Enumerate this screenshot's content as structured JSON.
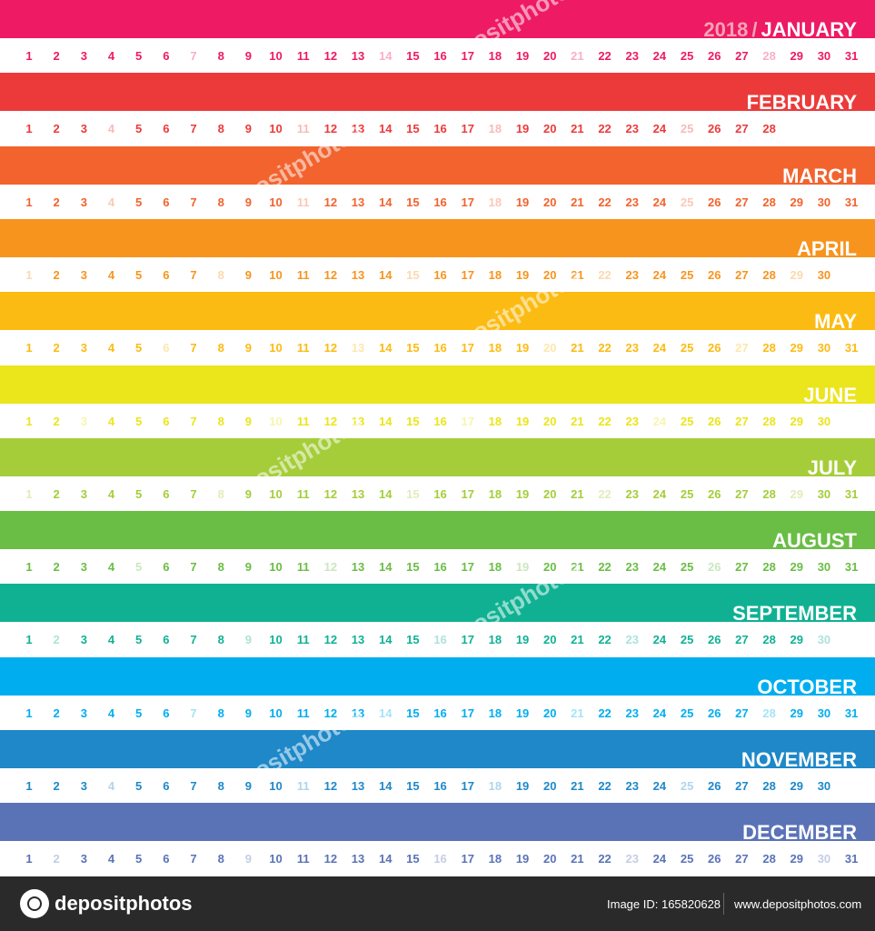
{
  "year": "2018",
  "separator": "/",
  "months": [
    {
      "name": "JANUARY",
      "color": "#ee1a63",
      "days": 31,
      "weekend": [
        7,
        14,
        21,
        28
      ]
    },
    {
      "name": "FEBRUARY",
      "color": "#ec3a3a",
      "days": 28,
      "weekend": [
        4,
        11,
        18,
        25
      ]
    },
    {
      "name": "MARCH",
      "color": "#f2632e",
      "days": 31,
      "weekend": [
        4,
        11,
        18,
        25
      ]
    },
    {
      "name": "APRIL",
      "color": "#f7941d",
      "days": 30,
      "weekend": [
        1,
        8,
        15,
        22,
        29
      ]
    },
    {
      "name": "MAY",
      "color": "#fbbb12",
      "days": 31,
      "weekend": [
        6,
        13,
        20,
        27
      ]
    },
    {
      "name": "JUNE",
      "color": "#ebe51b",
      "days": 30,
      "weekend": [
        3,
        10,
        17,
        24
      ]
    },
    {
      "name": "JULY",
      "color": "#a5cd3a",
      "days": 31,
      "weekend": [
        1,
        8,
        15,
        22,
        29
      ]
    },
    {
      "name": "AUGUST",
      "color": "#6abd45",
      "days": 31,
      "weekend": [
        5,
        12,
        19,
        26
      ]
    },
    {
      "name": "SEPTEMBER",
      "color": "#10b193",
      "days": 30,
      "weekend": [
        2,
        9,
        16,
        23,
        30
      ]
    },
    {
      "name": "OCTOBER",
      "color": "#00aeef",
      "days": 31,
      "weekend": [
        7,
        14,
        21,
        28
      ]
    },
    {
      "name": "NOVEMBER",
      "color": "#1e88c8",
      "days": 30,
      "weekend": [
        4,
        11,
        18,
        25
      ]
    },
    {
      "name": "DECEMBER",
      "color": "#5a73b7",
      "days": 31,
      "weekend": [
        2,
        9,
        16,
        23,
        30
      ]
    }
  ],
  "watermark": "depositphotos",
  "footer": {
    "logo_text": "depositphotos",
    "image_id": "Image ID: 165820628",
    "site_url": "www.depositphotos.com"
  }
}
